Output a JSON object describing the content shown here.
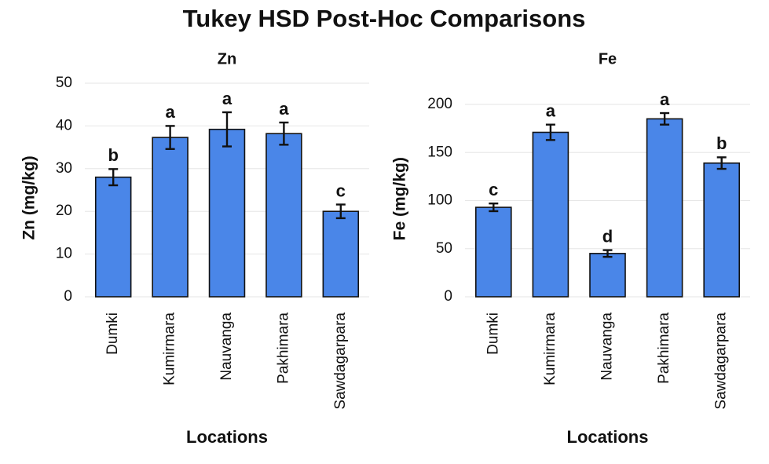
{
  "title": "Tukey HSD Post-Hoc Comparisons",
  "chart_data": [
    {
      "type": "bar",
      "title": "Zn",
      "x_label": "Locations",
      "y_label": "Zn (mg/kg)",
      "categories": [
        "Dumki",
        "Kumirmara",
        "Nauvanga",
        "Pakhimara",
        "Sawdagarpara"
      ],
      "values": [
        28,
        37.3,
        39.2,
        38.2,
        20
      ],
      "errors": [
        1.9,
        2.7,
        4,
        2.6,
        1.6
      ],
      "annotations": [
        "b",
        "a",
        "a",
        "a",
        "c"
      ],
      "color": "#4a86e8",
      "ylim": [
        0,
        50
      ],
      "yticks": [
        0,
        10,
        20,
        30,
        40,
        50
      ],
      "grid": true
    },
    {
      "type": "bar",
      "title": "Fe",
      "x_label": "Locations",
      "y_label": "Fe (mg/kg)",
      "categories": [
        "Dumki",
        "Kumirmara",
        "Nauvanga",
        "Pakhimara",
        "Sawdagarpara"
      ],
      "values": [
        93,
        171,
        45,
        185,
        139
      ],
      "errors": [
        4,
        8,
        3.5,
        6,
        6
      ],
      "annotations": [
        "c",
        "a",
        "d",
        "a",
        "b"
      ],
      "color": "#4a86e8",
      "ylim": [
        0,
        220
      ],
      "yticks": [
        0,
        50,
        100,
        150,
        200
      ],
      "grid": true
    }
  ]
}
